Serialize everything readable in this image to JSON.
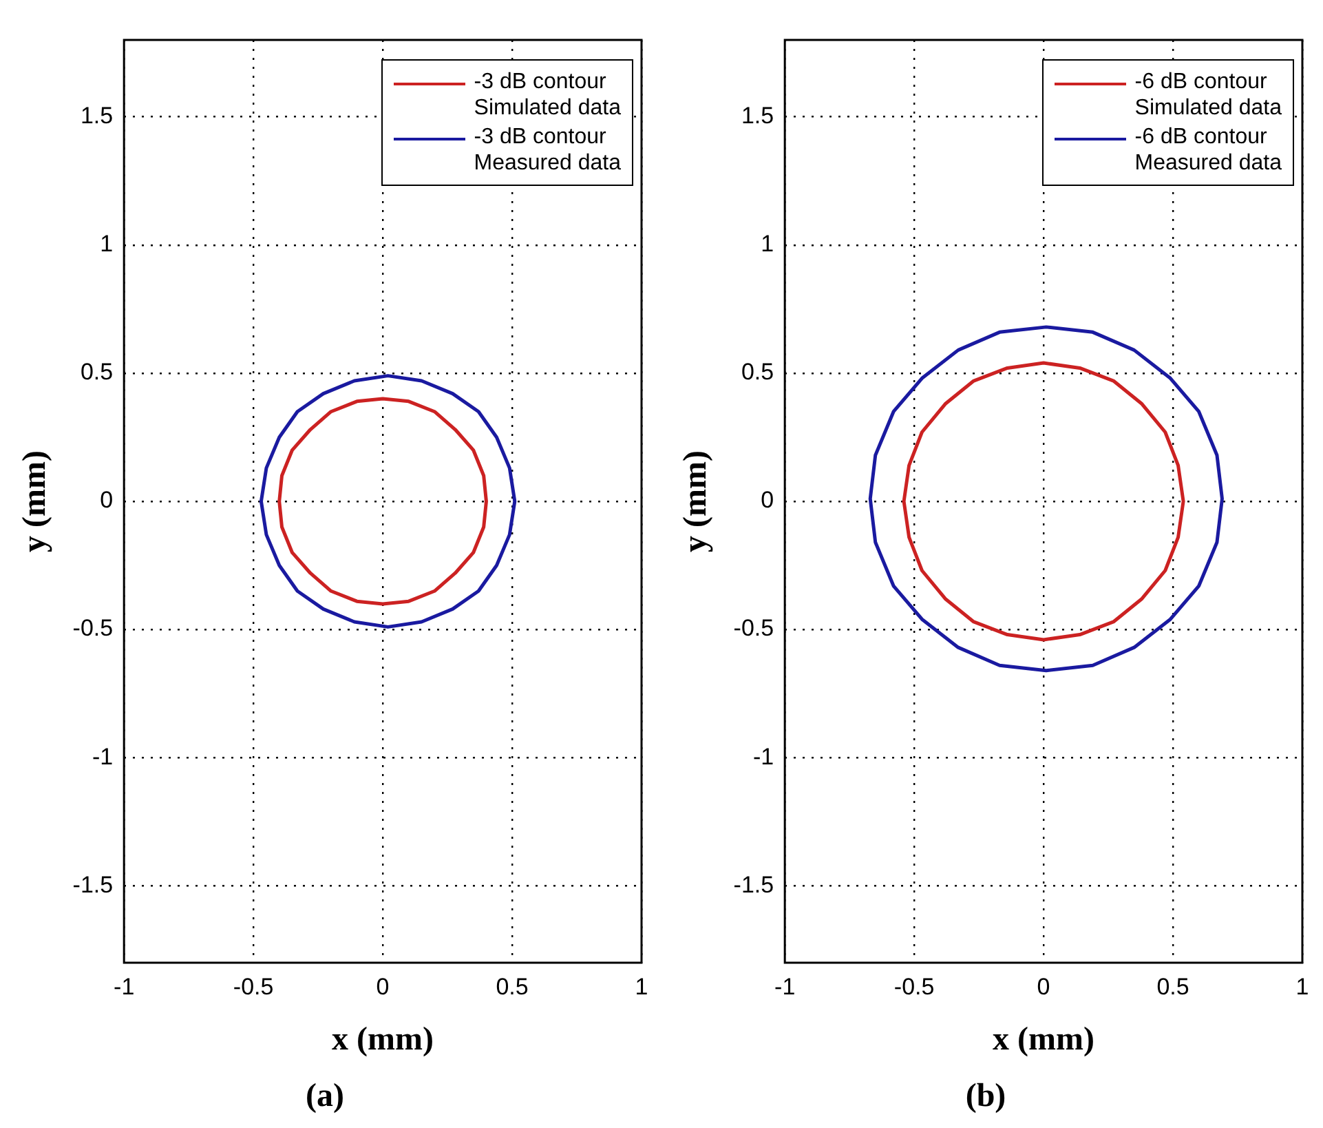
{
  "chart_data": [
    {
      "type": "line",
      "title": "(a)",
      "xlabel": "x (mm)",
      "ylabel": "y (mm)",
      "xlim": [
        -1,
        1
      ],
      "xticks": [
        -1,
        -0.5,
        0,
        0.5,
        1
      ],
      "ylim": [
        -1.8,
        1.8
      ],
      "yticks": [
        -1.5,
        -1,
        -0.5,
        0,
        0.5,
        1,
        1.5
      ],
      "grid": true,
      "legend": "top right",
      "marker": "none",
      "line_style": "solid",
      "series": [
        {
          "name": "-3 dB contour\nSimulated data",
          "color": "#cc2222",
          "x": [
            -0.4,
            -0.39,
            -0.35,
            -0.28,
            -0.2,
            -0.1,
            0,
            0.1,
            0.2,
            0.28,
            0.35,
            0.39,
            0.4,
            null,
            -0.4,
            -0.39,
            -0.35,
            -0.28,
            -0.2,
            -0.1,
            0,
            0.1,
            0.2,
            0.28,
            0.35,
            0.39,
            0.4
          ],
          "values": [
            0,
            0.1,
            0.2,
            0.28,
            0.35,
            0.39,
            0.4,
            0.39,
            0.35,
            0.28,
            0.2,
            0.1,
            0,
            null,
            0,
            -0.1,
            -0.2,
            -0.28,
            -0.35,
            -0.39,
            -0.4,
            -0.39,
            -0.35,
            -0.28,
            -0.2,
            -0.1,
            0
          ]
        },
        {
          "name": "-3 dB contour\nMeasured data",
          "color": "#1a1aa0",
          "x": [
            -0.47,
            -0.45,
            -0.4,
            -0.33,
            -0.23,
            -0.11,
            0.02,
            0.15,
            0.27,
            0.37,
            0.44,
            0.49,
            0.51,
            null,
            -0.47,
            -0.45,
            -0.4,
            -0.33,
            -0.23,
            -0.11,
            0.02,
            0.15,
            0.27,
            0.37,
            0.44,
            0.49,
            0.51
          ],
          "values": [
            0,
            0.13,
            0.25,
            0.35,
            0.42,
            0.47,
            0.49,
            0.47,
            0.42,
            0.35,
            0.25,
            0.13,
            0,
            null,
            0,
            -0.13,
            -0.25,
            -0.35,
            -0.42,
            -0.47,
            -0.49,
            -0.47,
            -0.42,
            -0.35,
            -0.25,
            -0.13,
            0
          ]
        }
      ]
    },
    {
      "type": "line",
      "title": "(b)",
      "xlabel": "x (mm)",
      "ylabel": "y (mm)",
      "xlim": [
        -1,
        1
      ],
      "xticks": [
        -1,
        -0.5,
        0,
        0.5,
        1
      ],
      "ylim": [
        -1.8,
        1.8
      ],
      "yticks": [
        -1.5,
        -1,
        -0.5,
        0,
        0.5,
        1,
        1.5
      ],
      "grid": true,
      "legend": "top right",
      "marker": "none",
      "line_style": "solid",
      "series": [
        {
          "name": "-6 dB contour\nSimulated data",
          "color": "#cc2222",
          "x": [
            -0.54,
            -0.52,
            -0.47,
            -0.38,
            -0.27,
            -0.14,
            0,
            0.14,
            0.27,
            0.38,
            0.47,
            0.52,
            0.54,
            null,
            -0.54,
            -0.52,
            -0.47,
            -0.38,
            -0.27,
            -0.14,
            0,
            0.14,
            0.27,
            0.38,
            0.47,
            0.52,
            0.54
          ],
          "values": [
            0,
            0.14,
            0.27,
            0.38,
            0.47,
            0.52,
            0.54,
            0.52,
            0.47,
            0.38,
            0.27,
            0.14,
            0,
            null,
            0,
            -0.14,
            -0.27,
            -0.38,
            -0.47,
            -0.52,
            -0.54,
            -0.52,
            -0.47,
            -0.38,
            -0.27,
            -0.14,
            0
          ]
        },
        {
          "name": "-6 dB contour\nMeasured data",
          "color": "#1a1aa0",
          "x": [
            -0.67,
            -0.65,
            -0.58,
            -0.47,
            -0.33,
            -0.17,
            0.01,
            0.19,
            0.35,
            0.49,
            0.6,
            0.67,
            0.69,
            null,
            -0.67,
            -0.65,
            -0.58,
            -0.47,
            -0.33,
            -0.17,
            0.01,
            0.19,
            0.35,
            0.49,
            0.6,
            0.67,
            0.69
          ],
          "values": [
            0.01,
            0.18,
            0.35,
            0.48,
            0.59,
            0.66,
            0.68,
            0.66,
            0.59,
            0.48,
            0.35,
            0.18,
            0.01,
            null,
            0.01,
            -0.16,
            -0.33,
            -0.46,
            -0.57,
            -0.64,
            -0.66,
            -0.64,
            -0.57,
            -0.46,
            -0.33,
            -0.16,
            0.01
          ]
        }
      ]
    }
  ]
}
